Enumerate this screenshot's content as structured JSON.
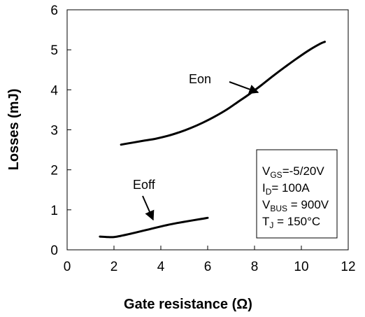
{
  "chart_data": {
    "type": "line",
    "title": "",
    "xlabel": "Gate resistance (Ω)",
    "ylabel": "Losses (mJ)",
    "xlim": [
      0,
      12
    ],
    "ylim": [
      0,
      6
    ],
    "xticks": [
      "0",
      "2",
      "4",
      "6",
      "8",
      "10",
      "12"
    ],
    "yticks": [
      "0",
      "1",
      "2",
      "3",
      "4",
      "5",
      "6"
    ],
    "grid": false,
    "series": [
      {
        "name": "Eon",
        "x": [
          2.3,
          2.8,
          3.3,
          3.8,
          4.3,
          4.8,
          5.3,
          5.8,
          6.3,
          6.8,
          7.3,
          7.8,
          8.3,
          8.8,
          9.3,
          9.8,
          10.3,
          10.8,
          11.0
        ],
        "y": [
          2.63,
          2.68,
          2.73,
          2.78,
          2.85,
          2.94,
          3.05,
          3.18,
          3.33,
          3.5,
          3.7,
          3.9,
          4.12,
          4.35,
          4.57,
          4.78,
          4.98,
          5.15,
          5.2
        ]
      },
      {
        "name": "Eoff",
        "x": [
          1.4,
          1.7,
          2.0,
          2.3,
          2.7,
          3.2,
          3.7,
          4.2,
          4.7,
          5.2,
          5.7,
          6.0
        ],
        "y": [
          0.33,
          0.32,
          0.32,
          0.35,
          0.4,
          0.47,
          0.54,
          0.61,
          0.67,
          0.72,
          0.77,
          0.8
        ]
      }
    ],
    "annotations": [
      {
        "text": "Eon",
        "target_series": "Eon"
      },
      {
        "text": "Eoff",
        "target_series": "Eoff"
      }
    ],
    "conditions": [
      {
        "main": "V",
        "sub": "GS",
        "rest": "=-5/20V"
      },
      {
        "main": "I",
        "sub": "D",
        "rest": "= 100A"
      },
      {
        "main": "V",
        "sub": "BUS",
        "rest": " = 900V"
      },
      {
        "main": "T",
        "sub": "J",
        "rest": " = 150°C"
      }
    ]
  }
}
